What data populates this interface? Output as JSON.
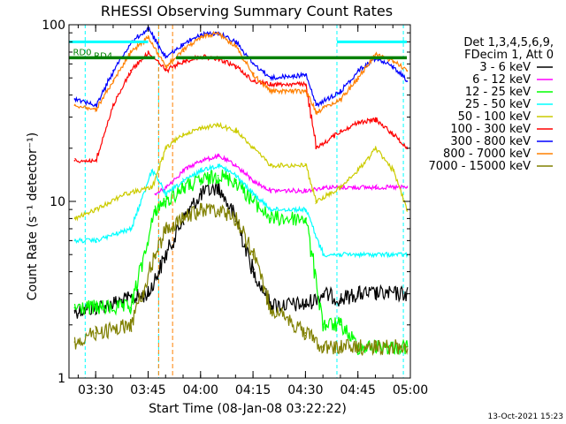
{
  "chart_data": {
    "type": "line",
    "title": "RHESSI Observing Summary Count Rates",
    "xlabel": "Start Time (08-Jan-08 03:22:22)",
    "ylabel": "Count Rate (s⁻¹ detector⁻¹)",
    "x_start": "03:22:22",
    "x_end": "05:00",
    "x_ticks": [
      "03:30",
      "03:45",
      "04:00",
      "04:15",
      "04:30",
      "04:45",
      "05:00"
    ],
    "y_scale": "log",
    "ylim": [
      1,
      100
    ],
    "y_ticks": [
      "1",
      "10",
      "100"
    ],
    "legend_header": [
      "Det 1,3,4,5,6,9,",
      "FDecim 1, Att 0"
    ],
    "series": [
      {
        "name": "3 - 6 keV",
        "color": "#000000",
        "times": [
          "03:24",
          "03:30",
          "03:45",
          "03:50",
          "03:55",
          "04:00",
          "04:05",
          "04:10",
          "04:15",
          "04:20",
          "04:30",
          "04:35",
          "04:40",
          "04:45",
          "04:50",
          "04:59"
        ],
        "values": [
          2.4,
          2.5,
          3,
          5,
          8,
          11,
          12,
          8,
          4,
          2.6,
          2.6,
          3,
          2.8,
          3,
          3,
          3
        ]
      },
      {
        "name": "6 - 12 keV",
        "color": "#ff00ff",
        "times": [
          "03:47",
          "03:50",
          "03:55",
          "04:00",
          "04:05",
          "04:10",
          "04:15",
          "04:20",
          "04:30",
          "04:35",
          "04:40",
          "04:45",
          "04:50",
          "04:59"
        ],
        "values": [
          11,
          12,
          15,
          17,
          18,
          16,
          13,
          11.5,
          11.5,
          12,
          12,
          12,
          12,
          12
        ]
      },
      {
        "name": "12 - 25 keV",
        "color": "#00ff00",
        "times": [
          "03:24",
          "03:30",
          "03:40",
          "03:47",
          "03:50",
          "03:55",
          "04:00",
          "04:05",
          "04:10",
          "04:15",
          "04:20",
          "04:30",
          "04:35",
          "04:40",
          "04:45",
          "04:50",
          "04:59"
        ],
        "values": [
          2.5,
          2.5,
          2.5,
          9,
          10,
          12,
          13,
          14,
          13,
          10,
          8,
          8,
          2,
          2,
          1.5,
          1.5,
          1.5
        ]
      },
      {
        "name": "25 - 50 keV",
        "color": "#00ffff",
        "times": [
          "03:24",
          "03:30",
          "03:40",
          "03:46",
          "03:50",
          "03:55",
          "04:00",
          "04:05",
          "04:10",
          "04:15",
          "04:20",
          "04:30",
          "04:35",
          "04:40",
          "04:45",
          "04:50",
          "04:59"
        ],
        "values": [
          6,
          6,
          7,
          15,
          11,
          13,
          15,
          16,
          14,
          11,
          9,
          9,
          5,
          5,
          5,
          5,
          5
        ]
      },
      {
        "name": "50 - 100 keV",
        "color": "#cccc00",
        "times": [
          "03:24",
          "03:30",
          "03:38",
          "03:46",
          "03:50",
          "03:55",
          "04:00",
          "04:05",
          "04:10",
          "04:15",
          "04:20",
          "04:30",
          "04:33",
          "04:40",
          "04:45",
          "04:50",
          "04:55",
          "04:59"
        ],
        "values": [
          8,
          9,
          11,
          12,
          20,
          24,
          26,
          27,
          25,
          20,
          16,
          16,
          10,
          12,
          15,
          20,
          15,
          9
        ]
      },
      {
        "name": "100 - 300 keV",
        "color": "#ff0000",
        "times": [
          "03:24",
          "03:30",
          "03:35",
          "03:40",
          "03:45",
          "03:50",
          "03:55",
          "04:00",
          "04:05",
          "04:10",
          "04:15",
          "04:20",
          "04:30",
          "04:33",
          "04:40",
          "04:45",
          "04:50",
          "04:55",
          "04:59"
        ],
        "values": [
          17,
          17,
          35,
          55,
          70,
          55,
          62,
          66,
          64,
          58,
          48,
          46,
          46,
          20,
          25,
          28,
          29,
          24,
          20
        ]
      },
      {
        "name": "300 - 800 keV",
        "color": "#0000ff",
        "times": [
          "03:24",
          "03:30",
          "03:35",
          "03:40",
          "03:45",
          "03:50",
          "03:55",
          "04:00",
          "04:05",
          "04:10",
          "04:15",
          "04:20",
          "04:30",
          "04:33",
          "04:40",
          "04:45",
          "04:50",
          "04:55",
          "04:59"
        ],
        "values": [
          38,
          35,
          55,
          80,
          95,
          65,
          78,
          88,
          90,
          80,
          60,
          50,
          52,
          35,
          42,
          55,
          65,
          58,
          48
        ]
      },
      {
        "name": "800 - 7000 keV",
        "color": "#ff8000",
        "times": [
          "03:24",
          "03:30",
          "03:35",
          "03:40",
          "03:45",
          "03:50",
          "03:55",
          "04:00",
          "04:05",
          "04:10",
          "04:15",
          "04:20",
          "04:30",
          "04:33",
          "04:40",
          "04:45",
          "04:50",
          "04:55",
          "04:59"
        ],
        "values": [
          35,
          33,
          48,
          70,
          85,
          58,
          72,
          85,
          90,
          75,
          52,
          42,
          42,
          32,
          38,
          50,
          68,
          62,
          55
        ]
      },
      {
        "name": "7000 - 15000 keV",
        "color": "#808000",
        "times": [
          "03:24",
          "03:30",
          "03:40",
          "03:47",
          "03:50",
          "03:55",
          "04:00",
          "04:05",
          "04:10",
          "04:15",
          "04:20",
          "04:30",
          "04:35",
          "04:40",
          "04:45",
          "04:50",
          "04:59"
        ],
        "values": [
          1.6,
          1.8,
          2,
          5,
          7,
          8,
          9,
          9,
          8,
          5,
          2.5,
          1.8,
          1.5,
          1.5,
          1.5,
          1.5,
          1.5
        ]
      }
    ],
    "annotations": [
      {
        "text": "RD0",
        "time": "03:24"
      },
      {
        "text": "RD4",
        "time": "03:30"
      }
    ],
    "flag_line_color": "#008000",
    "grid": false
  },
  "footer": {
    "generated": "13-Oct-2021 15:23"
  }
}
